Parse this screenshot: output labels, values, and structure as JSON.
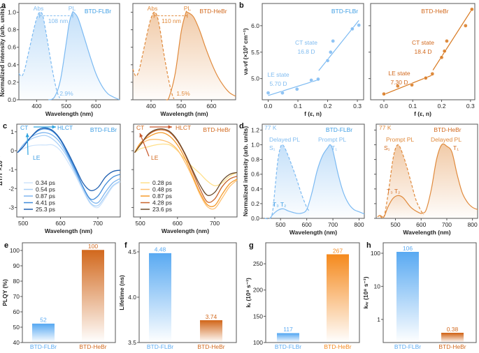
{
  "colors": {
    "flbr": "#5aaaf2",
    "flbr_label": "#3c9de4",
    "hebr": "#d8701e",
    "hebr_label": "#d2691e"
  },
  "chart_data": [
    {
      "panel": "a",
      "type": "line",
      "xlabel": "Wavelength (nm)",
      "ylabel": "Normalized intensity (arb. units)",
      "xlim": [
        340,
        680
      ],
      "ylim": [
        0,
        1.1
      ],
      "xticks": [
        "400",
        "500",
        "600"
      ],
      "yticks": [
        "0.0",
        "0.2",
        "0.4",
        "0.6",
        "0.8",
        "1.0"
      ],
      "ytick_labels": true,
      "series": [
        {
          "name": "Abs",
          "style": "dashed",
          "color": "#7cbaf2",
          "x": [
            340,
            350,
            360,
            370,
            380,
            390,
            400,
            410,
            420,
            430,
            440,
            450,
            460,
            470,
            478
          ],
          "y": [
            0.3,
            0.27,
            0.35,
            0.5,
            0.65,
            0.8,
            0.93,
            1.0,
            0.97,
            0.8,
            0.6,
            0.4,
            0.22,
            0.08,
            0.02
          ]
        },
        {
          "name": "PL",
          "style": "solid",
          "color": "#7cbaf2",
          "x": [
            440,
            460,
            480,
            500,
            510,
            520,
            525,
            540,
            560,
            580,
            600,
            620,
            640,
            660,
            680
          ],
          "y": [
            0,
            0.03,
            0.22,
            0.65,
            0.88,
            0.99,
            1.0,
            0.93,
            0.72,
            0.5,
            0.3,
            0.16,
            0.07,
            0.03,
            0.0
          ]
        }
      ],
      "annotations": [
        "Abs",
        "PL",
        "BTD-FLBr",
        "108 nm",
        "2.9%"
      ]
    },
    {
      "type": "line",
      "xlabel": "Wavelength (nm)",
      "ylabel": "",
      "xlim": [
        340,
        680
      ],
      "ylim": [
        0,
        1.1
      ],
      "xticks": [
        "400",
        "500",
        "600"
      ],
      "yticks": [
        "0.0",
        "0.2",
        "0.4",
        "0.6",
        "0.8",
        "1.0"
      ],
      "ytick_labels": false,
      "series": [
        {
          "name": "Abs",
          "style": "dashed",
          "color": "#e08a3c",
          "x": [
            340,
            350,
            360,
            370,
            380,
            390,
            400,
            410,
            420,
            430,
            440,
            450,
            460,
            470,
            476
          ],
          "y": [
            0.35,
            0.27,
            0.33,
            0.48,
            0.64,
            0.8,
            0.93,
            1.0,
            0.96,
            0.8,
            0.58,
            0.38,
            0.2,
            0.06,
            0.01
          ]
        },
        {
          "name": "PL",
          "style": "solid",
          "color": "#e08a3c",
          "x": [
            450,
            460,
            480,
            500,
            515,
            520,
            540,
            560,
            580,
            600,
            620,
            640,
            660,
            680
          ],
          "y": [
            0,
            0.03,
            0.3,
            0.78,
            0.99,
            1.0,
            0.95,
            0.8,
            0.6,
            0.42,
            0.27,
            0.16,
            0.08,
            0.04
          ]
        }
      ],
      "annotations": [
        "Abs",
        "PL",
        "BTD-HeBr",
        "110 nm",
        "1.5%"
      ]
    },
    {
      "panel": "b",
      "type": "scatter",
      "xlabel": "f (ε, n)",
      "ylabel": "νa-νf (×10³ cm⁻¹)",
      "xlim": [
        -0.02,
        0.321
      ],
      "ylim": [
        4.6,
        6.42
      ],
      "xticks": [
        "0.0",
        "0.1",
        "0.2",
        "0.3"
      ],
      "yticks": [
        "5.0",
        "5.5",
        "6.0"
      ],
      "ytick_labels": true,
      "color": "#7cbaf2",
      "points": {
        "x": [
          0,
          0.048,
          0.097,
          0.145,
          0.168,
          0.2,
          0.21,
          0.218,
          0.283,
          0.305
        ],
        "y": [
          4.73,
          4.73,
          4.8,
          4.97,
          4.99,
          5.34,
          5.5,
          5.71,
          5.94,
          6.01
        ]
      },
      "fits": [
        {
          "x": [
            0,
            0.17
          ],
          "y": [
            4.68,
            4.98
          ]
        },
        {
          "x": [
            0.17,
            0.305
          ],
          "y": [
            5.15,
            6.1
          ]
        }
      ],
      "annotations": [
        "BTD-FLBr",
        "CT state",
        "16.8 D",
        "LE state",
        "5.70 D"
      ]
    },
    {
      "type": "scatter",
      "xlabel": "f (ε, n)",
      "ylabel": "",
      "xlim": [
        -0.046,
        0.315
      ],
      "ylim": [
        4.6,
        6.42
      ],
      "xticks": [
        "0.0",
        "0.1",
        "0.2",
        "0.3"
      ],
      "yticks": [
        "5.0",
        "5.5",
        "6.0"
      ],
      "ytick_labels": false,
      "color": "#d8781e",
      "points": {
        "x": [
          0,
          0.048,
          0.097,
          0.145,
          0.168,
          0.2,
          0.21,
          0.218,
          0.283,
          0.305
        ],
        "y": [
          4.71,
          4.86,
          4.88,
          5.01,
          5.09,
          5.4,
          5.52,
          5.71,
          6.0,
          6.31
        ]
      },
      "fits": [
        {
          "x": [
            0,
            0.17
          ],
          "y": [
            4.7,
            5.07
          ]
        },
        {
          "x": [
            0.17,
            0.305
          ],
          "y": [
            5.16,
            6.31
          ]
        }
      ],
      "annotations": [
        "BTD-HeBr",
        "CT state",
        "18.4 D",
        "LE state",
        "7.30 D"
      ]
    },
    {
      "panel": "c",
      "type": "line",
      "xlabel": "Wavelength (nm)",
      "ylabel": "ΔT/T ×10⁻³",
      "xlim": [
        483,
        760
      ],
      "ylim": [
        -3.5,
        1.4
      ],
      "xticks": [
        "500",
        "600",
        "700"
      ],
      "yticks": [
        "-3",
        "-2",
        "-1",
        "0",
        "1"
      ],
      "ytick_labels": true,
      "x": [
        485,
        500,
        520,
        540,
        560,
        580,
        600,
        620,
        640,
        660,
        680,
        700,
        720,
        740,
        760
      ],
      "series": [
        {
          "name": "0.34 ps",
          "color": "#cfe4fb",
          "y": [
            -0.1,
            0.1,
            0.25,
            0.3,
            0.3,
            0.3,
            0.0,
            -0.6,
            -1.3,
            -2.1,
            -2.8,
            -3.0,
            -2.5,
            -1.9,
            -1.65
          ]
        },
        {
          "name": "0.54 ps",
          "color": "#a9d0f7",
          "y": [
            -0.1,
            0.3,
            0.6,
            0.75,
            0.8,
            0.6,
            0.2,
            -0.4,
            -1.2,
            -2.0,
            -2.75,
            -2.9,
            -2.4,
            -1.85,
            -1.6
          ]
        },
        {
          "name": "0.87 ps",
          "color": "#7fb6ef",
          "y": [
            -0.1,
            0.3,
            0.7,
            0.9,
            0.95,
            0.8,
            0.4,
            -0.3,
            -1.1,
            -1.9,
            -2.6,
            -2.75,
            -2.2,
            -1.7,
            -1.47
          ]
        },
        {
          "name": "4.41 ps",
          "color": "#3f8ad8",
          "y": [
            -0.1,
            0.2,
            0.7,
            1.05,
            1.15,
            1.0,
            0.55,
            -0.2,
            -1.0,
            -1.9,
            -2.55,
            -2.4,
            -1.8,
            -1.4,
            -1.25
          ]
        },
        {
          "name": "25.3 ps",
          "color": "#1f5fb0",
          "y": [
            -0.1,
            0.2,
            0.7,
            1.1,
            1.2,
            1.05,
            0.6,
            -0.1,
            -0.9,
            -1.7,
            -2.1,
            -1.95,
            -1.4,
            -1.1,
            -1.03
          ]
        }
      ],
      "legend": "bottom-left",
      "annotations": [
        "CT",
        "HLCT",
        "BTD-FLBr",
        "LE"
      ]
    },
    {
      "type": "line",
      "xlabel": "Wavelength (nm)",
      "ylabel": "",
      "xlim": [
        482,
        760
      ],
      "ylim": [
        -3.5,
        1.4
      ],
      "xticks": [
        "500",
        "600",
        "700"
      ],
      "yticks": [
        "-3",
        "-2",
        "-1",
        "0",
        "1"
      ],
      "ytick_labels": false,
      "x": [
        485,
        500,
        520,
        540,
        560,
        580,
        600,
        620,
        640,
        660,
        680,
        700,
        720,
        740,
        760
      ],
      "series": [
        {
          "name": "0.28 ps",
          "color": "#ffe08a",
          "y": [
            -0.1,
            0.1,
            0.2,
            0.3,
            0.35,
            0.3,
            0.0,
            -0.45,
            -0.85,
            -1.2,
            -1.6,
            -1.85,
            -1.7,
            -1.35,
            -1.15
          ]
        },
        {
          "name": "0.48 ps",
          "color": "#ffc070",
          "y": [
            -0.1,
            0.3,
            0.55,
            0.6,
            0.55,
            0.4,
            0.05,
            -0.6,
            -1.4,
            -2.3,
            -2.95,
            -3.05,
            -2.5,
            -1.9,
            -1.55
          ]
        },
        {
          "name": "0.87 ps",
          "color": "#f59a2a",
          "y": [
            -0.1,
            0.4,
            0.7,
            0.9,
            0.95,
            0.75,
            0.3,
            -0.4,
            -1.3,
            -2.2,
            -2.85,
            -2.9,
            -2.3,
            -1.75,
            -1.5
          ]
        },
        {
          "name": "4.28 ps",
          "color": "#c8642a",
          "y": [
            -0.1,
            0.3,
            0.8,
            1.05,
            1.1,
            0.95,
            0.5,
            -0.2,
            -1.1,
            -2.0,
            -2.7,
            -2.55,
            -1.9,
            -1.5,
            -1.35
          ]
        },
        {
          "name": "23.6 ps",
          "color": "#6b4a2a",
          "y": [
            -0.1,
            0.3,
            0.85,
            1.1,
            1.15,
            1.0,
            0.55,
            -0.15,
            -1.0,
            -1.8,
            -2.35,
            -2.2,
            -1.6,
            -1.25,
            -1.15
          ]
        }
      ],
      "legend": "bottom-left",
      "annotations": [
        "CT",
        "HLCT",
        "BTD-HeBr",
        "LE"
      ]
    },
    {
      "panel": "d",
      "type": "line",
      "xlabel": "Wavelength (nm)",
      "ylabel": "Normalized intensity (arb. units)",
      "xlim": [
        430,
        820
      ],
      "ylim": [
        0,
        1.28
      ],
      "xticks": [
        "500",
        "600",
        "700",
        "800"
      ],
      "yticks": [
        "0.0",
        "0.2",
        "0.4",
        "0.6",
        "0.8",
        "1.0",
        "1.2"
      ],
      "ytick_labels": true,
      "series": [
        {
          "name": "Delayed PL",
          "style": "dashed",
          "color": "#7cbaf2",
          "x": [
            440,
            460,
            470,
            480,
            490,
            500,
            508,
            520,
            540,
            560,
            580,
            600,
            610
          ],
          "y": [
            0,
            0,
            0.1,
            0.45,
            0.8,
            0.97,
            1.0,
            0.93,
            0.75,
            0.55,
            0.33,
            0.15,
            0.1
          ]
        },
        {
          "name": "Prompt PL",
          "style": "solid",
          "color": "#7cbaf2",
          "x": [
            460,
            470,
            490,
            510,
            530,
            560,
            580,
            600,
            620,
            640,
            660,
            680,
            690,
            700,
            720,
            740,
            760,
            780,
            800,
            820
          ],
          "y": [
            0,
            0.05,
            0.11,
            0.13,
            0.1,
            0.07,
            0.07,
            0.12,
            0.35,
            0.65,
            0.85,
            0.96,
            1.0,
            0.92,
            0.6,
            0.35,
            0.2,
            0.12,
            0.09,
            0.06
          ]
        }
      ],
      "annotations": [
        "77 K",
        "BTD-FLBr",
        "Delayed PL",
        "S₁",
        "Prompt PL",
        "T₁",
        "T₃  T₂"
      ]
    },
    {
      "type": "line",
      "xlabel": "Wavelength (nm)",
      "ylabel": "",
      "xlim": [
        425,
        820
      ],
      "ylim": [
        0,
        1.28
      ],
      "xticks": [
        "500",
        "600",
        "700",
        "800"
      ],
      "yticks": [
        "0.0",
        "0.2",
        "0.4",
        "0.6",
        "0.8",
        "1.0",
        "1.2"
      ],
      "ytick_labels": false,
      "series": [
        {
          "name": "Prompt PL",
          "style": "dashed",
          "color": "#e08a3c",
          "x": [
            440,
            455,
            470,
            480,
            490,
            500,
            510,
            520,
            540,
            560,
            580,
            600,
            610
          ],
          "y": [
            0.03,
            0.02,
            0.3,
            0.55,
            0.8,
            0.95,
            1.0,
            0.95,
            0.75,
            0.5,
            0.25,
            0.1,
            0.05
          ]
        },
        {
          "name": "Delayed PL",
          "style": "solid",
          "color": "#e08a3c",
          "x": [
            430,
            440,
            455,
            470,
            490,
            510,
            530,
            560,
            590,
            605,
            620,
            640,
            660,
            680,
            700,
            720,
            740,
            760,
            780,
            800,
            820
          ],
          "y": [
            0.02,
            0.04,
            0.02,
            0.15,
            0.27,
            0.31,
            0.28,
            0.15,
            0.08,
            0.07,
            0.12,
            0.4,
            0.8,
            1.0,
            0.98,
            0.9,
            0.6,
            0.35,
            0.22,
            0.15,
            0.12
          ]
        }
      ],
      "annotations": [
        "77 K",
        "BTD-HeBr",
        "Prompt PL",
        "S₁",
        "Delayed PL",
        "T₁",
        "T₃  T₂"
      ]
    },
    {
      "panel": "e",
      "type": "bar",
      "xlabel": "",
      "ylabel": "PLQY (%)",
      "ylim": [
        40,
        105
      ],
      "yticks": [
        "40",
        "50",
        "60",
        "70",
        "80",
        "90",
        "100"
      ],
      "ytick_labels": true,
      "categories": [
        "BTD-FLBr",
        "BTD-HeBr"
      ],
      "values": [
        52,
        100
      ],
      "value_labels": [
        "52",
        "100"
      ],
      "bar_colors": [
        "#5aaaf2",
        "#d2691e"
      ]
    },
    {
      "panel": "f",
      "type": "bar",
      "xlabel": "",
      "ylabel": "Lifetime (ns)",
      "ylim": [
        3.5,
        4.6
      ],
      "yticks": [
        "3.5",
        "4.0",
        "4.5"
      ],
      "ytick_labels": true,
      "categories": [
        "BTD-FLBr",
        "BTD-HeBr"
      ],
      "values": [
        4.48,
        3.74
      ],
      "value_labels": [
        "4.48",
        "3.74"
      ],
      "bar_colors": [
        "#5aaaf2",
        "#d2691e"
      ]
    },
    {
      "panel": "g",
      "type": "bar",
      "xlabel": "",
      "ylabel": "kᵣ (10⁸ s⁻¹)",
      "ylim": [
        100,
        290
      ],
      "yticks": [
        "100",
        "150",
        "200",
        "250"
      ],
      "ytick_labels": true,
      "categories": [
        "BTD-FLBr",
        "BTD-HeBr"
      ],
      "values": [
        117,
        267
      ],
      "value_labels": [
        "117",
        "267"
      ],
      "bar_colors": [
        "#5aaaf2",
        "#f58a1e"
      ]
    },
    {
      "panel": "h",
      "type": "bar",
      "xlabel": "",
      "ylabel": "kₙᵣ (10⁸ s⁻¹)",
      "yscale": "log",
      "ylim": [
        0.2,
        207
      ],
      "yticks": [
        "1",
        "10",
        "100"
      ],
      "ytick_labels": true,
      "categories": [
        "BTD-FLBr",
        "BTD-HeBr"
      ],
      "values": [
        106,
        0.38
      ],
      "value_labels": [
        "106",
        "0.38"
      ],
      "bar_colors": [
        "#5aaaf2",
        "#d2691e"
      ]
    }
  ]
}
